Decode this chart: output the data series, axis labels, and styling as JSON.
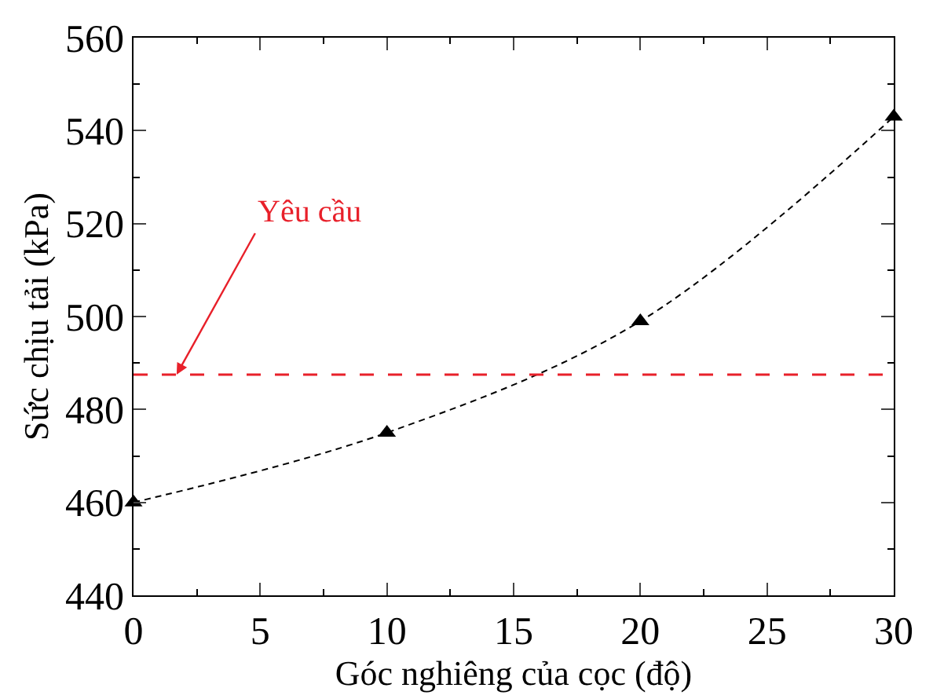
{
  "chart_data": {
    "type": "line",
    "xlabel": "Góc nghiêng của cọc (độ)",
    "ylabel": "Sức chịu tải (kPa)",
    "x": [
      0,
      10,
      20,
      30
    ],
    "series": [
      {
        "color": "#000000",
        "values": [
          460,
          475,
          499,
          543
        ]
      }
    ],
    "xlim": [
      0,
      30
    ],
    "xticks": [
      0,
      5,
      10,
      15,
      20,
      25,
      30
    ],
    "ylim": [
      440,
      560
    ],
    "yticks": [
      440,
      460,
      480,
      500,
      520,
      540,
      560
    ],
    "marker": "triangle",
    "line_style": "dashed",
    "ref_lines": [
      {
        "axis": "y",
        "value": 487.5,
        "color": "#e8202a",
        "line_style": "dashed"
      }
    ],
    "annotations": [
      {
        "text": "Yêu cầu",
        "x": 1.7,
        "y": 487.5
      }
    ]
  }
}
